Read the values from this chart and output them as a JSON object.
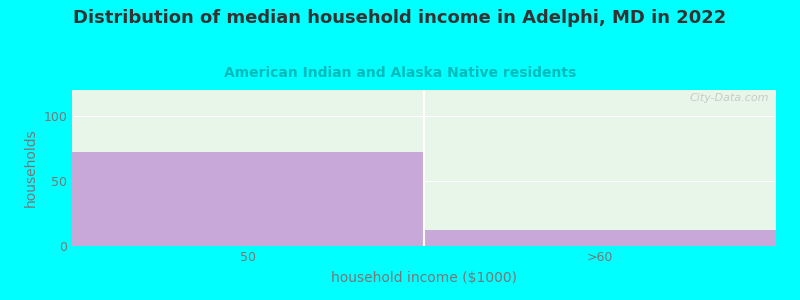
{
  "title": "Distribution of median household income in Adelphi, MD in 2022",
  "subtitle": "American Indian and Alaska Native residents",
  "xlabel": "household income ($1000)",
  "ylabel": "households",
  "background_color": "#00ffff",
  "plot_bg_color": "#e8f5e9",
  "bar_color": "#c8a8d8",
  "categories": [
    "50",
    ">60"
  ],
  "values": [
    72,
    12
  ],
  "ylim": [
    0,
    120
  ],
  "yticks": [
    0,
    50,
    100
  ],
  "watermark": "City-Data.com",
  "title_fontsize": 13,
  "subtitle_fontsize": 10,
  "axis_label_fontsize": 10,
  "tick_fontsize": 9,
  "title_color": "#333333",
  "subtitle_color": "#00bbbb",
  "axis_color": "#777777",
  "grid_color": "#ffffff",
  "divider_color": "#ffffff"
}
